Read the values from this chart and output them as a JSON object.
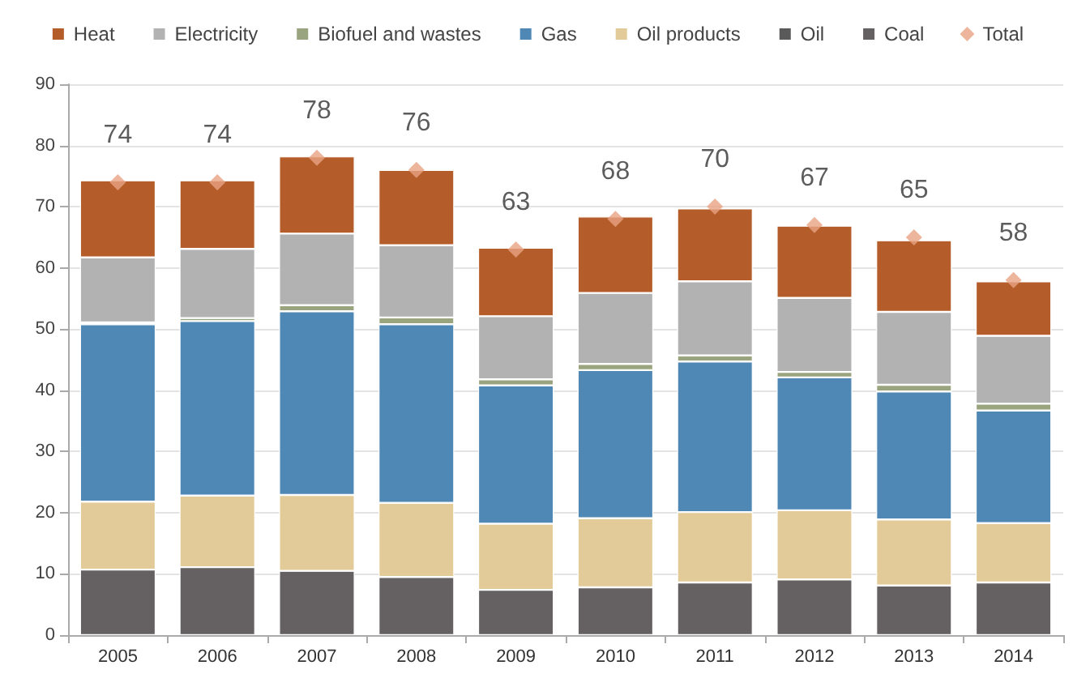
{
  "chart_data": {
    "type": "bar",
    "stacked": true,
    "categories": [
      "2005",
      "2006",
      "2007",
      "2008",
      "2009",
      "2010",
      "2011",
      "2012",
      "2013",
      "2014"
    ],
    "series": [
      {
        "name": "Coal",
        "color": "#656062",
        "values": [
          10.7,
          11.1,
          10.5,
          9.5,
          7.4,
          7.8,
          8.6,
          9.1,
          8.1,
          8.6
        ]
      },
      {
        "name": "Oil",
        "color": "#5a5a5a",
        "values": [
          0,
          0,
          0,
          0,
          0,
          0,
          0,
          0,
          0,
          0
        ]
      },
      {
        "name": "Oil products",
        "color": "#e2cb98",
        "values": [
          11.1,
          11.7,
          12.4,
          12.1,
          10.8,
          11.3,
          11.5,
          11.3,
          10.8,
          9.7
        ]
      },
      {
        "name": "Gas",
        "color": "#4f87b5",
        "values": [
          29.0,
          28.5,
          30.0,
          29.2,
          22.6,
          24.2,
          24.6,
          21.7,
          20.9,
          18.4
        ]
      },
      {
        "name": "Biofuel and wastes",
        "color": "#9aa57f",
        "values": [
          0.3,
          0.5,
          1.0,
          1.1,
          1.0,
          1.0,
          1.0,
          0.9,
          1.1,
          1.1
        ]
      },
      {
        "name": "Electricity",
        "color": "#b2b2b2",
        "values": [
          10.6,
          11.3,
          11.7,
          11.8,
          10.3,
          11.6,
          12.1,
          12.1,
          11.9,
          11.1
        ]
      },
      {
        "name": "Heat",
        "color": "#b45d2a",
        "values": [
          12.6,
          11.2,
          12.6,
          12.3,
          11.2,
          12.5,
          11.9,
          11.8,
          11.7,
          8.9
        ]
      },
      {
        "name": "Total",
        "type": "scatter",
        "marker": "diamond",
        "color": "#e8a282",
        "values": [
          74,
          74,
          78,
          76,
          63,
          68,
          70,
          67,
          65,
          58
        ],
        "value_labels": [
          "74",
          "74",
          "78",
          "76",
          "63",
          "68",
          "70",
          "67",
          "65",
          "58"
        ]
      }
    ],
    "ylim": [
      0,
      90
    ],
    "yticks": [
      0,
      10,
      20,
      30,
      40,
      50,
      60,
      70,
      80,
      90
    ],
    "grid": "y",
    "legend": "top"
  }
}
